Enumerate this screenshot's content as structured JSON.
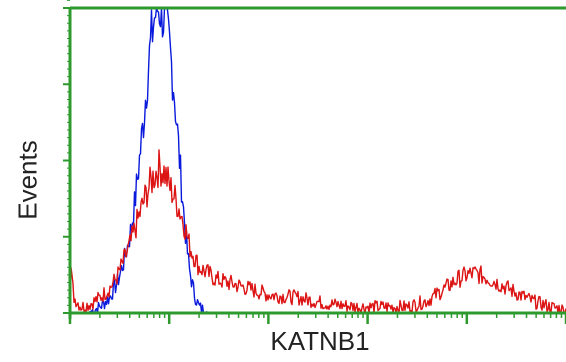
{
  "colors": {
    "frame": "#2e9a2e",
    "series_blue": "#0a1adc",
    "series_red": "#dc1414"
  },
  "chart_data": {
    "type": "line",
    "title": "",
    "xlabel": "KATNB1",
    "ylabel": "Events",
    "x_scale": "log",
    "x_range": [
      1,
      100000
    ],
    "x_ticks": [
      1,
      10,
      100,
      1000,
      10000,
      100000
    ],
    "y_range": [
      0,
      100
    ],
    "grid": false,
    "legend": "none",
    "series": [
      {
        "color": "#0a1adc",
        "x": [
          1.5,
          2,
          2.5,
          3,
          3.5,
          4,
          4.5,
          5,
          5.5,
          6,
          6.5,
          7,
          7.5,
          8,
          8.5,
          9,
          10,
          11,
          12,
          13,
          14,
          15,
          16,
          18,
          20,
          22,
          25
        ],
        "y": [
          0,
          2,
          5,
          10,
          17,
          25,
          36,
          50,
          63,
          77,
          88,
          96,
          100,
          100,
          99,
          95,
          88,
          76,
          61,
          46,
          33,
          22,
          14,
          6,
          2,
          1,
          0
        ]
      },
      {
        "color": "#dc1414",
        "x": [
          1,
          1.05,
          1.1,
          1.3,
          1.6,
          2,
          2.5,
          3,
          4,
          5,
          6,
          7,
          8,
          9,
          10,
          12,
          14,
          16,
          20,
          30,
          50,
          80,
          100,
          200,
          400,
          800,
          1500,
          2500,
          4000,
          6000,
          8000,
          10000,
          12000,
          15000,
          20000,
          30000,
          45000,
          70000,
          100000
        ],
        "y": [
          19,
          10,
          5,
          2,
          3,
          5,
          8,
          12,
          22,
          32,
          40,
          45,
          48,
          46,
          42,
          36,
          30,
          22,
          15,
          11,
          9,
          7,
          6,
          5,
          3,
          2,
          2,
          2,
          4,
          8,
          11,
          12.5,
          13,
          12,
          10,
          7,
          4,
          2,
          1
        ]
      }
    ]
  }
}
